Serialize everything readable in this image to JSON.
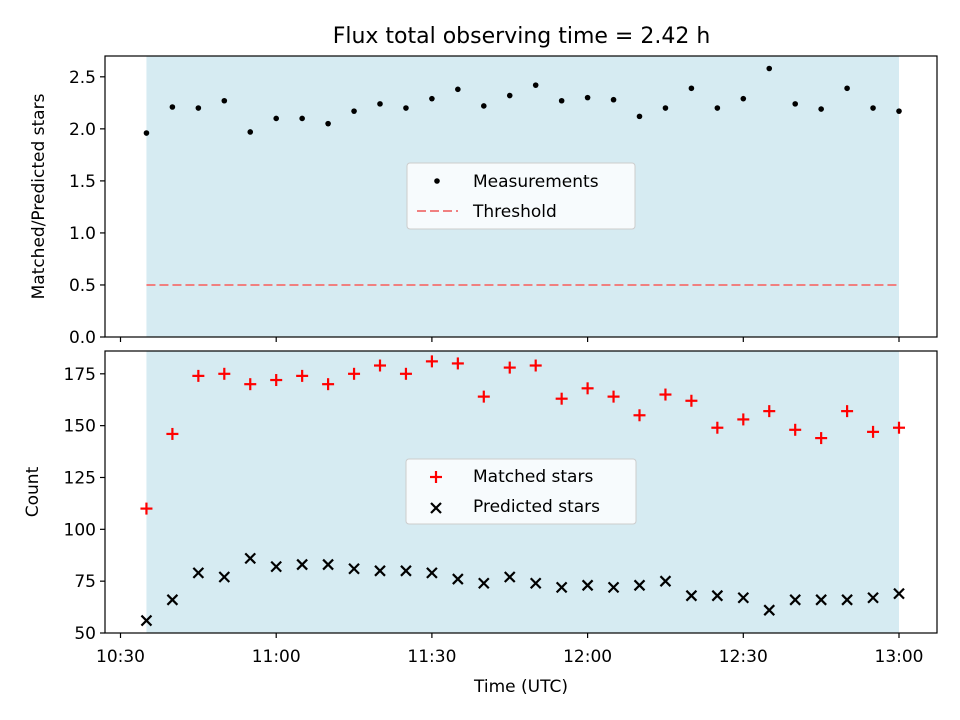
{
  "figure": {
    "title": "Flux total observing time = 2.42 h",
    "xlabel": "Time (UTC)"
  },
  "chart_data": [
    {
      "type": "scatter",
      "ylabel": "Matched/Predicted stars",
      "xlim": [
        "10:30",
        "13:00"
      ],
      "ylim": [
        0,
        2.7
      ],
      "yticks": [
        0.0,
        0.5,
        1.0,
        1.5,
        2.0,
        2.5
      ],
      "ytick_labels": [
        "0.0",
        "0.5",
        "1.0",
        "1.5",
        "2.0",
        "2.5"
      ],
      "xticks": [
        "10:30",
        "11:00",
        "11:30",
        "12:00",
        "12:30",
        "13:00"
      ],
      "shaded_span": {
        "from": "10:35",
        "to": "13:00",
        "color": "#add8e6"
      },
      "legend": {
        "placement": "center",
        "entries": [
          "Measurements",
          "Threshold"
        ]
      },
      "series": [
        {
          "name": "Measurements",
          "marker": "dot",
          "color": "#000000",
          "x": [
            "10:35",
            "10:40",
            "10:45",
            "10:50",
            "10:55",
            "11:00",
            "11:05",
            "11:10",
            "11:15",
            "11:20",
            "11:25",
            "11:30",
            "11:35",
            "11:40",
            "11:45",
            "11:50",
            "11:55",
            "12:00",
            "12:05",
            "12:10",
            "12:15",
            "12:20",
            "12:25",
            "12:30",
            "12:35",
            "12:40",
            "12:45",
            "12:50",
            "12:55",
            "13:00"
          ],
          "y": [
            1.96,
            2.21,
            2.2,
            2.27,
            1.97,
            2.1,
            2.1,
            2.05,
            2.17,
            2.24,
            2.2,
            2.29,
            2.38,
            2.22,
            2.32,
            2.42,
            2.27,
            2.3,
            2.28,
            2.12,
            2.2,
            2.39,
            2.2,
            2.29,
            2.58,
            2.24,
            2.19,
            2.39,
            2.2,
            2.17
          ]
        },
        {
          "name": "Threshold",
          "marker": "dashed-line",
          "color": "#f08080",
          "x": [
            "10:35",
            "13:00"
          ],
          "y": [
            0.5,
            0.5
          ]
        }
      ]
    },
    {
      "type": "scatter",
      "ylabel": "Count",
      "xlabel": "Time (UTC)",
      "xlim": [
        "10:30",
        "13:00"
      ],
      "ylim": [
        50,
        186
      ],
      "yticks": [
        50,
        75,
        100,
        125,
        150,
        175
      ],
      "ytick_labels": [
        "50",
        "75",
        "100",
        "125",
        "150",
        "175"
      ],
      "xticks": [
        "10:30",
        "11:00",
        "11:30",
        "12:00",
        "12:30",
        "13:00"
      ],
      "xtick_labels": [
        "10:30",
        "11:00",
        "11:30",
        "12:00",
        "12:30",
        "13:00"
      ],
      "shaded_span": {
        "from": "10:35",
        "to": "13:00",
        "color": "#add8e6"
      },
      "legend": {
        "placement": "center",
        "entries": [
          "Matched stars",
          "Predicted stars"
        ]
      },
      "series": [
        {
          "name": "Matched stars",
          "marker": "plus",
          "color": "#ff0000",
          "x": [
            "10:35",
            "10:40",
            "10:45",
            "10:50",
            "10:55",
            "11:00",
            "11:05",
            "11:10",
            "11:15",
            "11:20",
            "11:25",
            "11:30",
            "11:35",
            "11:40",
            "11:45",
            "11:50",
            "11:55",
            "12:00",
            "12:05",
            "12:10",
            "12:15",
            "12:20",
            "12:25",
            "12:30",
            "12:35",
            "12:40",
            "12:45",
            "12:50",
            "12:55",
            "13:00"
          ],
          "y": [
            110,
            146,
            174,
            175,
            170,
            172,
            174,
            170,
            175,
            179,
            175,
            181,
            180,
            164,
            178,
            179,
            163,
            168,
            164,
            155,
            165,
            162,
            149,
            153,
            157,
            148,
            144,
            157,
            147,
            149
          ]
        },
        {
          "name": "Predicted stars",
          "marker": "x",
          "color": "#000000",
          "x": [
            "10:35",
            "10:40",
            "10:45",
            "10:50",
            "10:55",
            "11:00",
            "11:05",
            "11:10",
            "11:15",
            "11:20",
            "11:25",
            "11:30",
            "11:35",
            "11:40",
            "11:45",
            "11:50",
            "11:55",
            "12:00",
            "12:05",
            "12:10",
            "12:15",
            "12:20",
            "12:25",
            "12:30",
            "12:35",
            "12:40",
            "12:45",
            "12:50",
            "12:55",
            "13:00"
          ],
          "y": [
            56,
            66,
            79,
            77,
            86,
            82,
            83,
            83,
            81,
            80,
            80,
            79,
            76,
            74,
            77,
            74,
            72,
            73,
            72,
            73,
            75,
            68,
            68,
            67,
            61,
            66,
            66,
            66,
            67,
            69
          ]
        }
      ]
    }
  ]
}
